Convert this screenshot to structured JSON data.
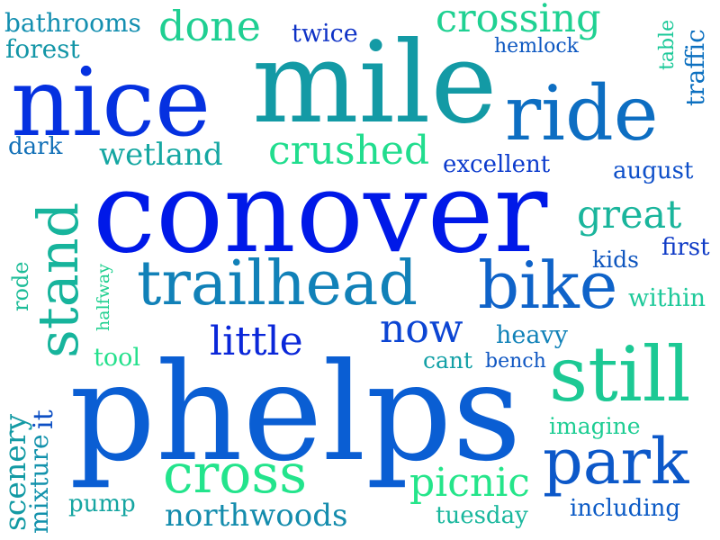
{
  "words": {
    "phelps": "phelps",
    "conover": "conover",
    "mile": "mile",
    "nice": "nice",
    "ride": "ride",
    "trailhead": "trailhead",
    "bike": "bike",
    "stand": "stand",
    "still": "still",
    "park": "park",
    "cross": "cross",
    "crossing": "crossing",
    "done": "done",
    "crushed": "crushed",
    "great": "great",
    "little": "little",
    "now": "now",
    "picnic": "picnic",
    "northwoods": "northwoods",
    "scenery": "scenery",
    "wetland": "wetland",
    "bathrooms": "bathrooms",
    "forest": "forest",
    "twice": "twice",
    "hemlock": "hemlock",
    "table": "table",
    "traffic": "traffic",
    "excellent": "excellent",
    "dark": "dark",
    "august": "august",
    "first": "first",
    "kids": "kids",
    "within": "within",
    "rode": "rode",
    "halfway": "halfway",
    "heavy": "heavy",
    "tool": "tool",
    "cant": "cant",
    "bench": "bench",
    "imagine": "imagine",
    "it": "it",
    "mixture": "mixture",
    "pump": "pump",
    "tuesday": "tuesday",
    "including": "including"
  },
  "colors": {
    "phelps": "#0a5ed3",
    "conover": "#0019e8",
    "mile": "#139aa5",
    "nice": "#0531e0",
    "ride": "#0d6ec2",
    "trailhead": "#1181b8",
    "bike": "#0f63c9",
    "stand": "#17b49c",
    "still": "#1cc994",
    "park": "#0c58c9",
    "cross": "#23e48c",
    "crossing": "#1fd192",
    "done": "#1fcf92",
    "crushed": "#21dd8e",
    "great": "#1ab59c",
    "little": "#0a27d9",
    "now": "#0c45d3",
    "picnic": "#25e58a",
    "northwoods": "#148cad",
    "scenery": "#139aa4",
    "wetland": "#15a7a2",
    "bathrooms": "#148fb0",
    "forest": "#1396a7",
    "twice": "#0e32c6",
    "hemlock": "#0e58c1",
    "table": "#1ac898",
    "traffic": "#0c70c0",
    "excellent": "#0c3bcd",
    "dark": "#1270b7",
    "august": "#0e4fc9",
    "first": "#0e3ac6",
    "kids": "#0f56bf",
    "within": "#1ec99a",
    "rode": "#1dbd98",
    "halfway": "#1fd08f",
    "heavy": "#1182b8",
    "tool": "#24e08c",
    "cant": "#13a0a6",
    "bench": "#0f56c2",
    "imagine": "#1dcd93",
    "it": "#0d4fc4",
    "mixture": "#1392ac",
    "pump": "#15a5a1",
    "tuesday": "#19b79d",
    "including": "#0c5bc6"
  }
}
